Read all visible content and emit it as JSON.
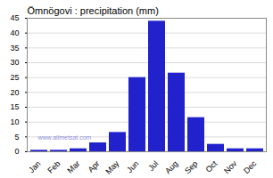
{
  "chart_data": {
    "type": "bar",
    "title": "Ömnögovi : precipitation (mm)",
    "categories": [
      "Jan",
      "Feb",
      "Mar",
      "Apr",
      "May",
      "Jun",
      "Jul",
      "Aug",
      "Sep",
      "Oct",
      "Nov",
      "Dec"
    ],
    "values": [
      0.5,
      0.5,
      1.0,
      3.0,
      6.5,
      25.0,
      44.0,
      26.5,
      11.5,
      2.5,
      1.0,
      1.0
    ],
    "color": "#2222cc",
    "ylim": [
      0,
      45
    ],
    "yticks": [
      0,
      5,
      10,
      15,
      20,
      25,
      30,
      35,
      40,
      45
    ],
    "grid": true,
    "annotation": "www.allmetsat.com"
  }
}
